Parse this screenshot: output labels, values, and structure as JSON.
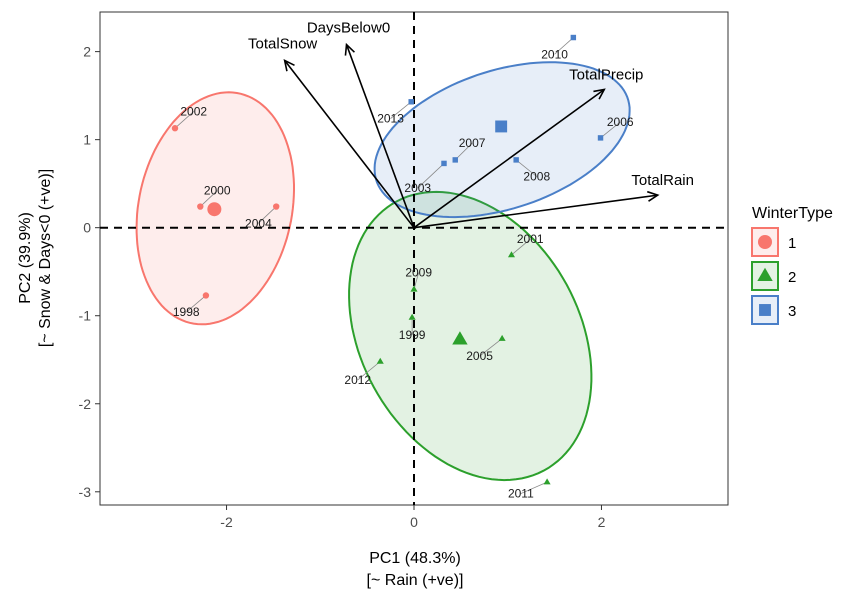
{
  "chart_data": {
    "type": "scatter",
    "title": "",
    "xlabel": [
      "PC1 (48.3%)",
      "[~ Rain (+ve)]"
    ],
    "ylabel": [
      "PC2 (39.9%)",
      "[~ Snow & Days<0 (+ve)]"
    ],
    "xlim": [
      -3.35,
      3.35
    ],
    "ylim": [
      -3.15,
      2.45
    ],
    "xticks": [
      -2,
      0,
      2
    ],
    "yticks": [
      -3,
      -2,
      -1,
      0,
      1,
      2
    ],
    "grid": false,
    "legend": {
      "title": "WinterType",
      "position": "right",
      "entries": [
        {
          "label": "1",
          "shape": "circle",
          "color": "#F8766D"
        },
        {
          "label": "2",
          "shape": "triangle",
          "color": "#2CA02C"
        },
        {
          "label": "3",
          "shape": "square",
          "color": "#4A7FC8"
        }
      ]
    },
    "series": [
      {
        "name": "1",
        "shape": "circle",
        "color": "#F8766D",
        "points": [
          {
            "label": "2002",
            "x": -2.55,
            "y": 1.13,
            "lx": -2.35,
            "ly": 1.32
          },
          {
            "label": "2000",
            "x": -2.28,
            "y": 0.24,
            "lx": -2.1,
            "ly": 0.42
          },
          {
            "label": "2004",
            "x": -1.47,
            "y": 0.24,
            "lx": -1.66,
            "ly": 0.05
          },
          {
            "label": "1998",
            "x": -2.22,
            "y": -0.77,
            "lx": -2.43,
            "ly": -0.96
          }
        ],
        "centroid": {
          "x": -2.13,
          "y": 0.21
        },
        "ellipse": {
          "cx": -2.12,
          "cy": 0.22,
          "rx": 1.33,
          "ry": 0.82,
          "angle_deg": 80
        }
      },
      {
        "name": "2",
        "shape": "triangle",
        "color": "#2CA02C",
        "points": [
          {
            "label": "2001",
            "x": 1.04,
            "y": -0.31,
            "lx": 1.24,
            "ly": -0.13
          },
          {
            "label": "2009",
            "x": 0.0,
            "y": -0.7,
            "lx": 0.05,
            "ly": -0.51
          },
          {
            "label": "1999",
            "x": -0.02,
            "y": -1.02,
            "lx": -0.02,
            "ly": -1.22
          },
          {
            "label": "2005",
            "x": 0.94,
            "y": -1.26,
            "lx": 0.7,
            "ly": -1.46
          },
          {
            "label": "2012",
            "x": -0.36,
            "y": -1.52,
            "lx": -0.6,
            "ly": -1.73
          },
          {
            "label": "2011",
            "x": 1.42,
            "y": -2.89,
            "lx": 1.14,
            "ly": -3.02
          }
        ],
        "centroid": {
          "x": 0.49,
          "y": -1.27
        },
        "ellipse": {
          "cx": 0.6,
          "cy": -1.23,
          "rx": 1.72,
          "ry": 1.18,
          "angle_deg": -65
        }
      },
      {
        "name": "3",
        "shape": "square",
        "color": "#4A7FC8",
        "points": [
          {
            "label": "2010",
            "x": 1.7,
            "y": 2.16,
            "lx": 1.5,
            "ly": 1.97
          },
          {
            "label": "2013",
            "x": -0.03,
            "y": 1.43,
            "lx": -0.25,
            "ly": 1.24
          },
          {
            "label": "2006",
            "x": 1.99,
            "y": 1.02,
            "lx": 2.2,
            "ly": 1.2
          },
          {
            "label": "2007",
            "x": 0.44,
            "y": 0.77,
            "lx": 0.62,
            "ly": 0.96
          },
          {
            "label": "2003",
            "x": 0.32,
            "y": 0.73,
            "lx": 0.04,
            "ly": 0.45
          },
          {
            "label": "2008",
            "x": 1.09,
            "y": 0.77,
            "lx": 1.31,
            "ly": 0.58
          }
        ],
        "centroid": {
          "x": 0.93,
          "y": 1.15
        },
        "ellipse": {
          "cx": 0.94,
          "cy": 1.0,
          "rx": 1.42,
          "ry": 0.78,
          "angle_deg": 20
        }
      }
    ],
    "loadings": [
      {
        "label": "TotalSnow",
        "x": -1.38,
        "y": 1.9
      },
      {
        "label": "DaysBelow0",
        "x": -0.72,
        "y": 2.08
      },
      {
        "label": "TotalPrecip",
        "x": 2.03,
        "y": 1.57
      },
      {
        "label": "TotalRain",
        "x": 2.6,
        "y": 0.37
      }
    ]
  }
}
